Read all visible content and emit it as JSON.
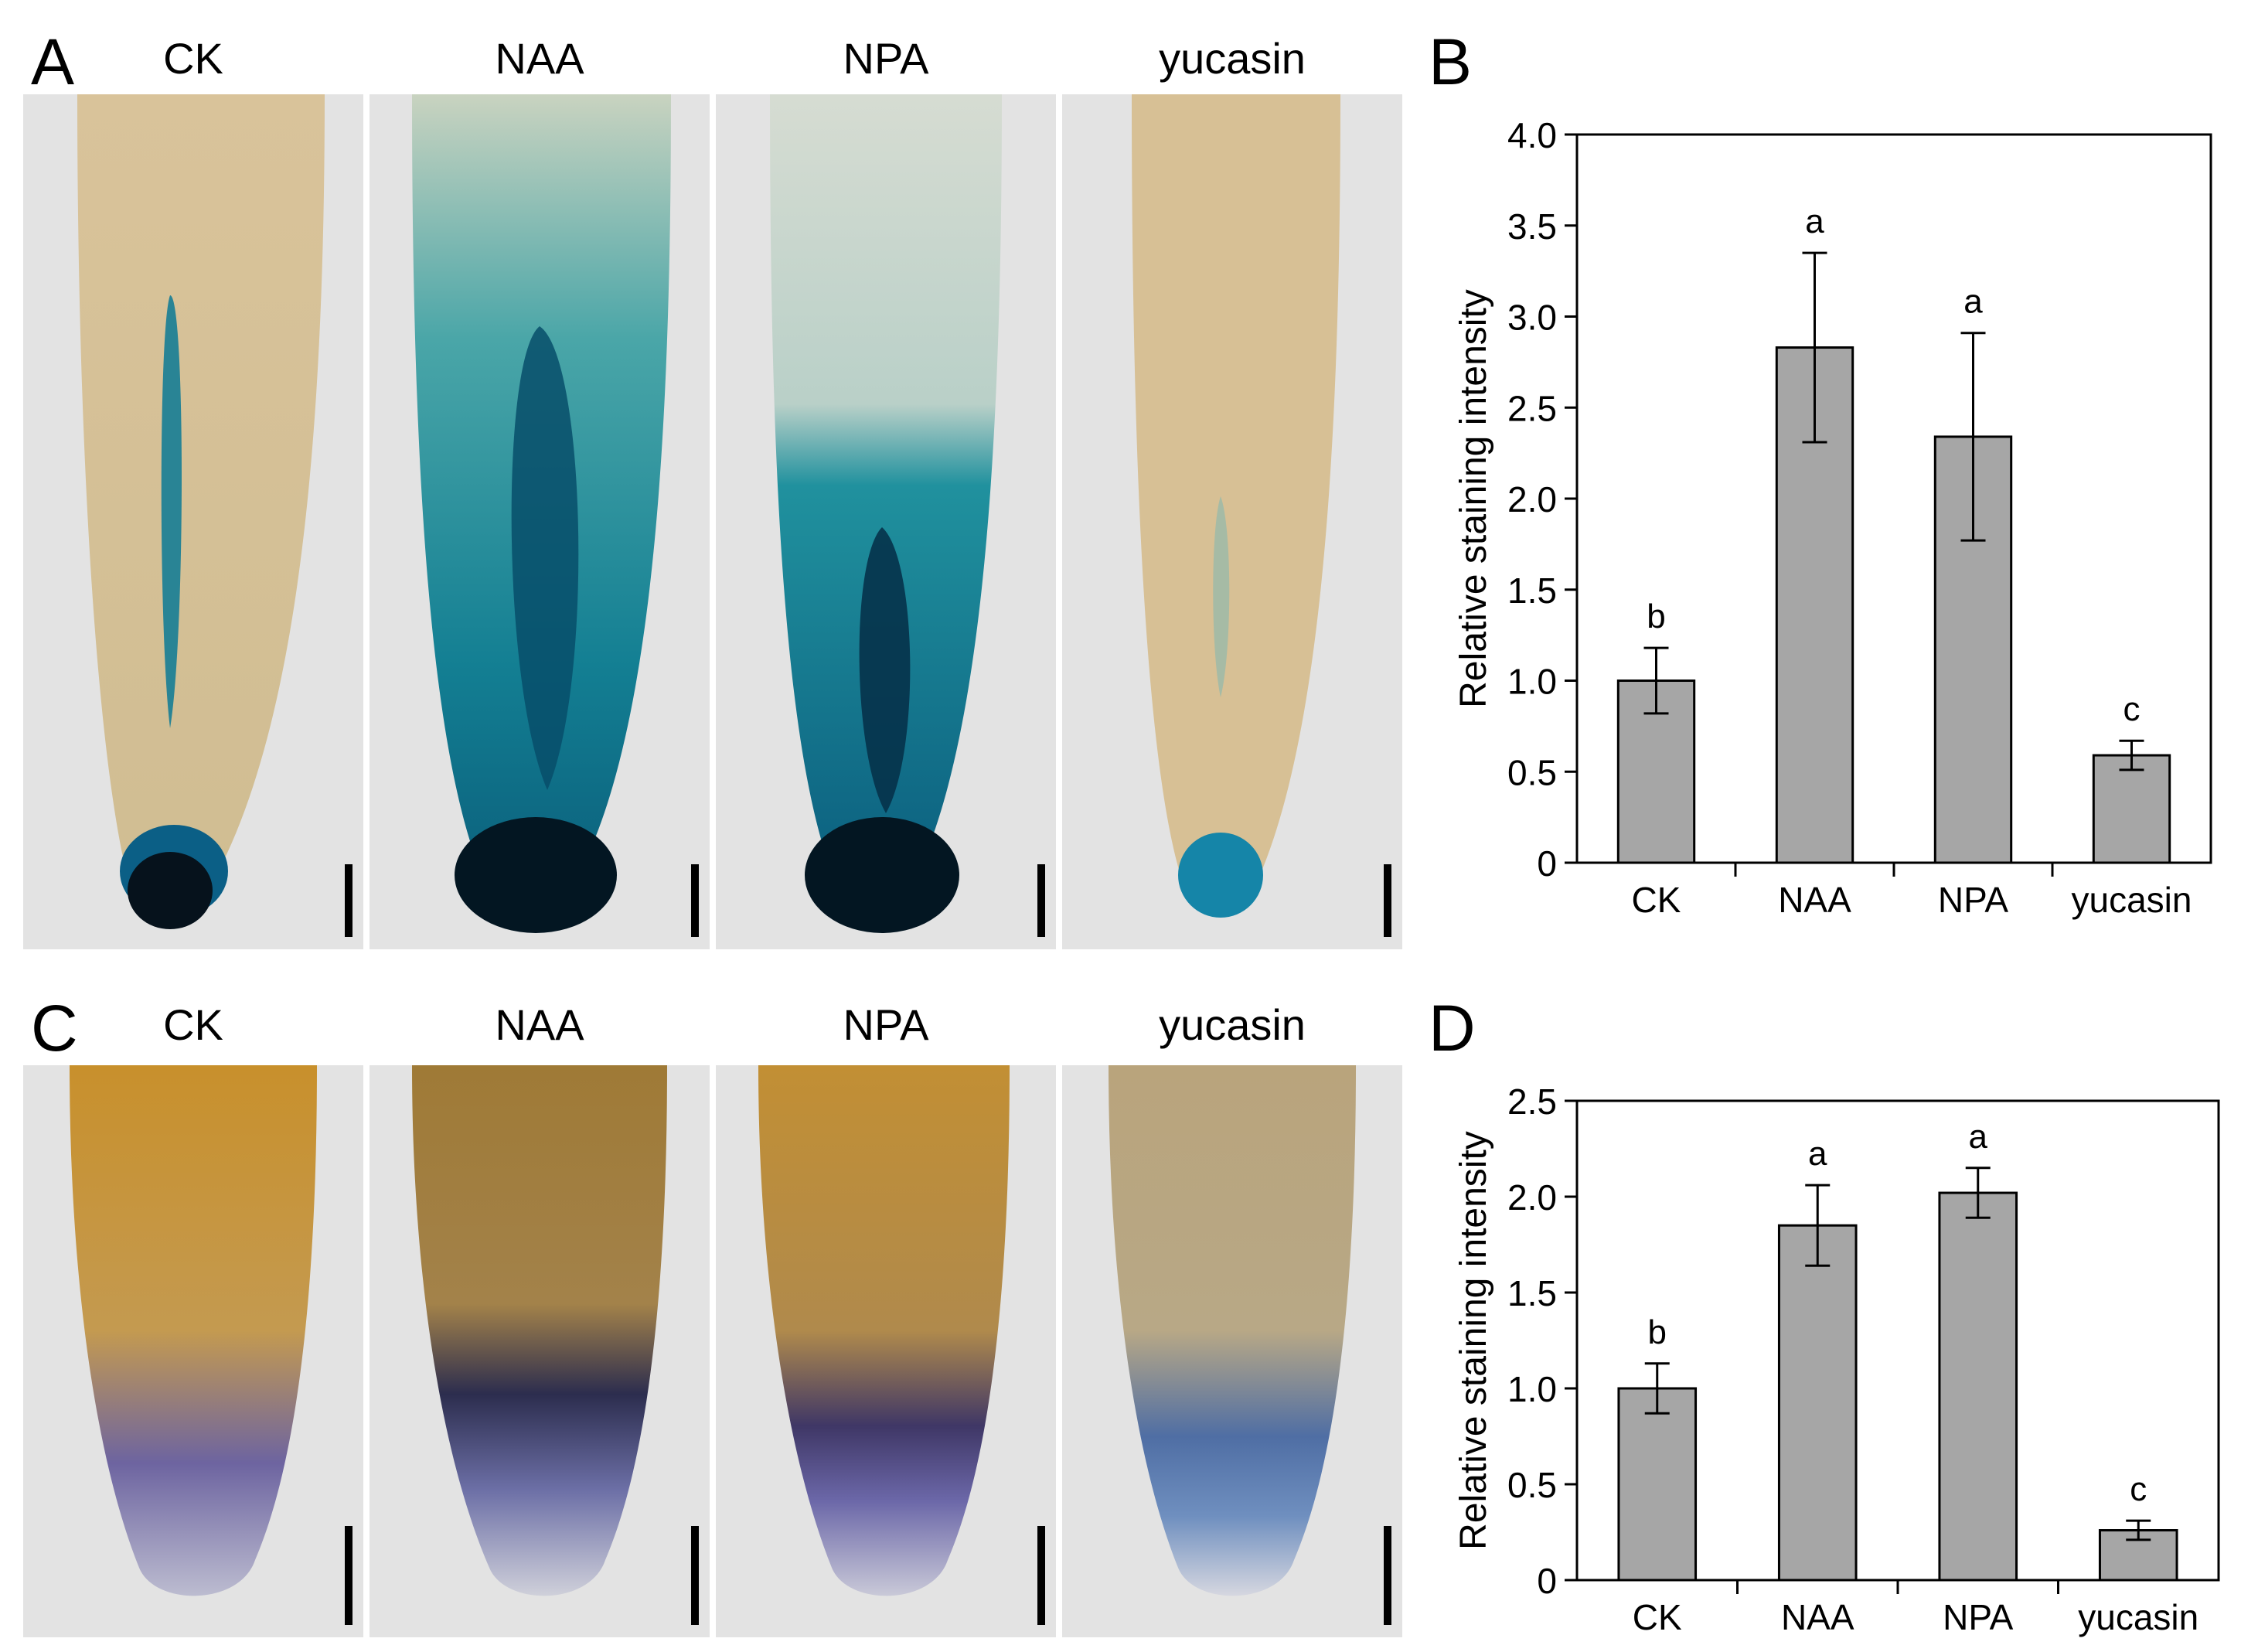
{
  "figure": {
    "panels": {
      "A": {
        "letter": "A",
        "labels": [
          "CK",
          "NAA",
          "NPA",
          "yucasin"
        ],
        "image_descriptions": [
          "Root tip: faint blue stele staining and dark blue tip",
          "Root tip: strong blue staining throughout with dark tip",
          "Root tip: strong blue staining in lower half with dark tip",
          "Root tip: mostly beige with small blue tip"
        ]
      },
      "B": {
        "letter": "B"
      },
      "C": {
        "letter": "C",
        "labels": [
          "CK",
          "NAA",
          "NPA",
          "yucasin"
        ],
        "image_descriptions": [
          "Root tip: orange-brown with purple tip",
          "Root tip: brown with dark band and purple tip",
          "Root tip: orange-brown with purple tip",
          "Root tip: pale with blue-purple tip"
        ]
      },
      "D": {
        "letter": "D"
      }
    },
    "colors": {
      "bar_fill": "#a6a6a6",
      "beige": "#d6bd8e",
      "blue_stain": "#0f7b94",
      "dark_stain": "#031a2a",
      "orange": "#c89a3c",
      "purple": "#6a66a8"
    }
  },
  "chart_data": [
    {
      "id": "B",
      "type": "bar",
      "categories": [
        "CK",
        "NAA",
        "NPA",
        "yucasin"
      ],
      "values": [
        1.0,
        2.83,
        2.34,
        0.59
      ],
      "errors": [
        0.18,
        0.52,
        0.57,
        0.08
      ],
      "significance": [
        "b",
        "a",
        "a",
        "c"
      ],
      "ylabel": "Relative staining intensity",
      "ylim": [
        0,
        4.0
      ],
      "yticks": [
        0,
        0.5,
        1.0,
        1.5,
        2.0,
        2.5,
        3.0,
        3.5,
        4.0
      ],
      "ytick_labels": [
        "0",
        "0.5",
        "1.0",
        "1.5",
        "2.0",
        "2.5",
        "3.0",
        "3.5",
        "4.0"
      ],
      "xlabel": "",
      "grid": false
    },
    {
      "id": "D",
      "type": "bar",
      "categories": [
        "CK",
        "NAA",
        "NPA",
        "yucasin"
      ],
      "values": [
        1.0,
        1.85,
        2.02,
        0.26
      ],
      "errors": [
        0.13,
        0.21,
        0.13,
        0.05
      ],
      "significance": [
        "b",
        "a",
        "a",
        "c"
      ],
      "ylabel": "Relative staining intensity",
      "ylim": [
        0,
        2.5
      ],
      "yticks": [
        0,
        0.5,
        1.0,
        1.5,
        2.0,
        2.5
      ],
      "ytick_labels": [
        "0",
        "0.5",
        "1.0",
        "1.5",
        "2.0",
        "2.5"
      ],
      "xlabel": "",
      "grid": false
    }
  ]
}
